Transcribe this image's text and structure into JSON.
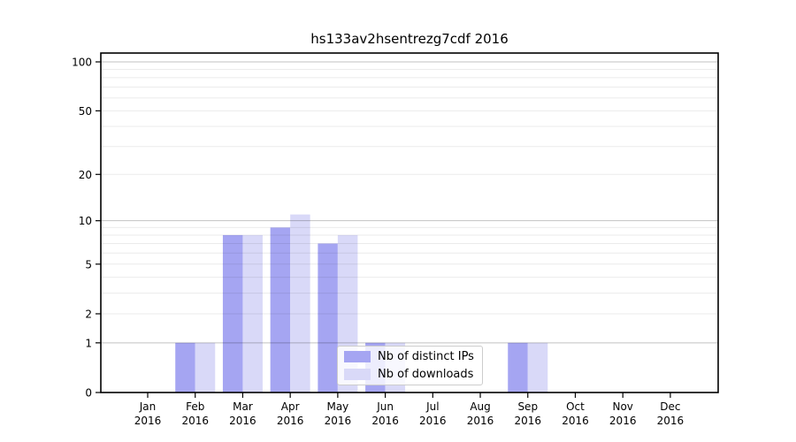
{
  "colors": {
    "background": "#ffffff",
    "axis": "#000000",
    "text": "#000000",
    "grid_minor": "rgba(0,0,0,0.08)",
    "grid_major": "rgba(0,0,0,0.24)",
    "legend_border": "#cccccc",
    "distinct_ips_bar": "#a5a5f2",
    "downloads_bar": "#d9d9f8"
  },
  "chart_data": {
    "type": "bar",
    "title": "hs133av2hsentrezg7cdf 2016",
    "xlabel": "",
    "ylabel": "",
    "categories": [
      "Jan 2016",
      "Feb 2016",
      "Mar 2016",
      "Apr 2016",
      "May 2016",
      "Jun 2016",
      "Jul 2016",
      "Aug 2016",
      "Sep 2016",
      "Oct 2016",
      "Nov 2016",
      "Dec 2016"
    ],
    "series": [
      {
        "name": "Nb of distinct IPs",
        "color": "#a5a5f2",
        "values": [
          0,
          1,
          8,
          9,
          7,
          1,
          0,
          0,
          1,
          0,
          0,
          0
        ]
      },
      {
        "name": "Nb of downloads",
        "color": "#d9d9f8",
        "values": [
          0,
          1,
          8,
          11,
          8,
          1,
          0,
          0,
          1,
          0,
          0,
          0
        ]
      }
    ],
    "y_scale": "log10(value+1)",
    "y_ticks": [
      0,
      1,
      2,
      5,
      10,
      20,
      50,
      100
    ],
    "ylim": [
      0,
      113
    ],
    "gridlines": {
      "minor": [
        2,
        3,
        4,
        5,
        6,
        7,
        8,
        9,
        20,
        30,
        40,
        50,
        60,
        70,
        80,
        90
      ],
      "major": [
        1,
        10,
        100
      ]
    },
    "grid": true,
    "legend_position": "lower center"
  }
}
